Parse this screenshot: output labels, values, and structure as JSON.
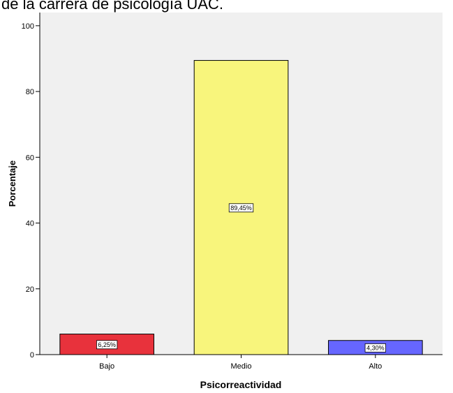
{
  "chart_data": {
    "type": "bar",
    "title": "de la carrera de psicología UAC.",
    "x_label": "Psicorreactividad",
    "y_label": "Porcentaje",
    "categories": [
      "Bajo",
      "Medio",
      "Alto"
    ],
    "values": [
      6.25,
      89.45,
      4.3
    ],
    "value_labels": [
      "6,25%",
      "89,45%",
      "4,30%"
    ],
    "colors": [
      "#e8323c",
      "#f8f57c",
      "#6666ff"
    ],
    "ylim": [
      0,
      104
    ],
    "yticks": [
      0,
      20,
      40,
      60,
      80,
      100
    ],
    "grid": false
  }
}
